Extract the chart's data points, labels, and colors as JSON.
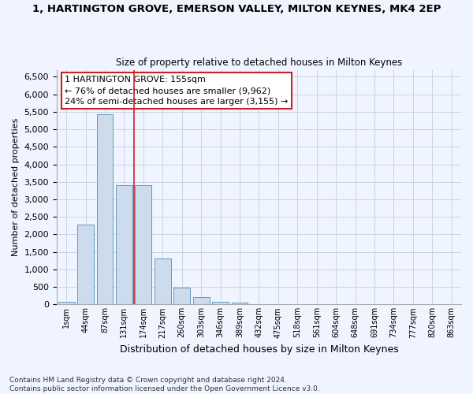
{
  "title": "1, HARTINGTON GROVE, EMERSON VALLEY, MILTON KEYNES, MK4 2EP",
  "subtitle": "Size of property relative to detached houses in Milton Keynes",
  "xlabel": "Distribution of detached houses by size in Milton Keynes",
  "ylabel": "Number of detached properties",
  "bar_color": "#ccdcec",
  "bar_edge_color": "#6699bb",
  "categories": [
    "1sqm",
    "44sqm",
    "87sqm",
    "131sqm",
    "174sqm",
    "217sqm",
    "260sqm",
    "303sqm",
    "346sqm",
    "389sqm",
    "432sqm",
    "475sqm",
    "518sqm",
    "561sqm",
    "604sqm",
    "648sqm",
    "691sqm",
    "734sqm",
    "777sqm",
    "820sqm",
    "863sqm"
  ],
  "values": [
    70,
    2280,
    5420,
    3400,
    3400,
    1310,
    480,
    200,
    85,
    55,
    0,
    0,
    0,
    0,
    0,
    0,
    0,
    0,
    0,
    0,
    0
  ],
  "ylim": [
    0,
    6700
  ],
  "yticks": [
    0,
    500,
    1000,
    1500,
    2000,
    2500,
    3000,
    3500,
    4000,
    4500,
    5000,
    5500,
    6000,
    6500
  ],
  "annotation_text": "1 HARTINGTON GROVE: 155sqm\n← 76% of detached houses are smaller (9,962)\n24% of semi-detached houses are larger (3,155) →",
  "vline_x": 3.5,
  "vline_color": "#cc2222",
  "footer": "Contains HM Land Registry data © Crown copyright and database right 2024.\nContains public sector information licensed under the Open Government Licence v3.0.",
  "bg_color": "#f0f4ff",
  "grid_color": "#c8d4e8"
}
